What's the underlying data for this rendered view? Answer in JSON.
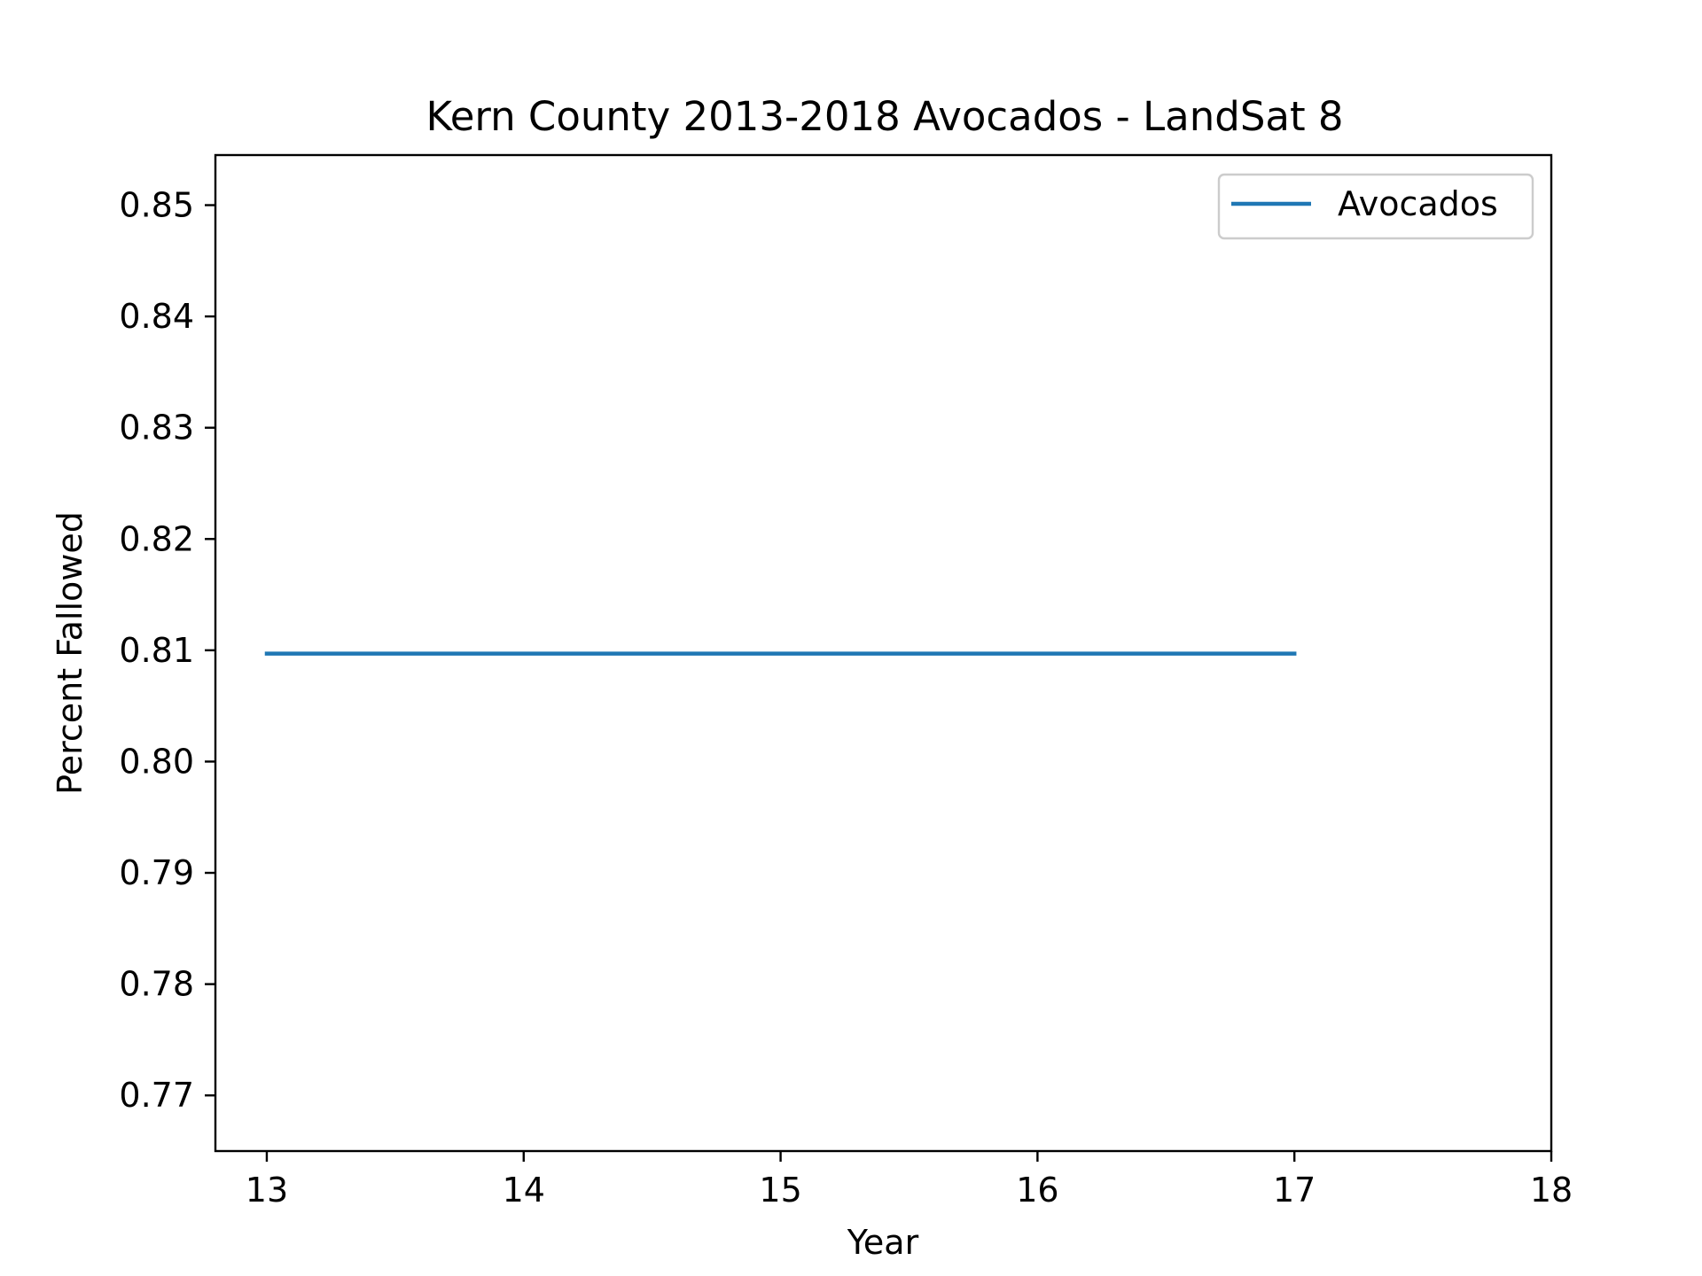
{
  "chart_data": {
    "type": "line",
    "title": "Kern County 2013-2018 Avocados - LandSat 8",
    "xlabel": "Year",
    "ylabel": "Percent Fallowed",
    "xlim": [
      12.8,
      18
    ],
    "ylim": [
      0.765,
      0.8545
    ],
    "x_ticks": [
      13,
      14,
      15,
      16,
      17,
      18
    ],
    "x_tick_labels": [
      "13",
      "14",
      "15",
      "16",
      "17",
      "18"
    ],
    "y_ticks": [
      0.77,
      0.78,
      0.79,
      0.8,
      0.81,
      0.82,
      0.83,
      0.84,
      0.85
    ],
    "y_tick_labels": [
      "0.77",
      "0.78",
      "0.79",
      "0.80",
      "0.81",
      "0.82",
      "0.83",
      "0.84",
      "0.85"
    ],
    "grid": false,
    "legend_position": "top-right",
    "series": [
      {
        "name": "Avocados",
        "color": "#1f77b4",
        "x": [
          13,
          14,
          15,
          16,
          17
        ],
        "y": [
          0.8097,
          0.8097,
          0.8097,
          0.8097,
          0.8097
        ]
      }
    ]
  }
}
